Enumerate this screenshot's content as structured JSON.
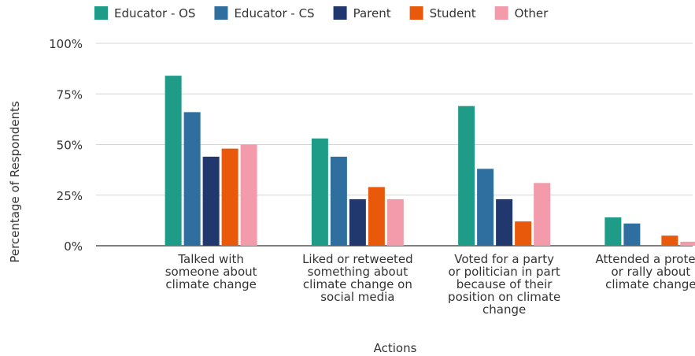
{
  "chart_data": {
    "type": "bar",
    "categories": [
      [
        "Talked with",
        "someone about",
        "climate change"
      ],
      [
        "Liked or retweeted",
        "something about",
        "climate change on",
        "social media"
      ],
      [
        "Voted for a party",
        "or politician in part",
        "because of their",
        "position on climate",
        "change"
      ],
      [
        "Attended a protest",
        "or rally about",
        "climate change"
      ]
    ],
    "series": [
      {
        "name": "Educator - OS",
        "color": "#1f9c87",
        "values": [
          84,
          53,
          69,
          14
        ]
      },
      {
        "name": "Educator - CS",
        "color": "#2f6f9f",
        "values": [
          66,
          44,
          38,
          11
        ]
      },
      {
        "name": "Parent",
        "color": "#20386e",
        "values": [
          44,
          23,
          23,
          0
        ]
      },
      {
        "name": "Student",
        "color": "#e8590c",
        "values": [
          48,
          29,
          12,
          5
        ]
      },
      {
        "name": "Other",
        "color": "#f39bab",
        "values": [
          50,
          23,
          31,
          2
        ]
      }
    ],
    "yticks": [
      "0%",
      "25%",
      "50%",
      "75%",
      "100%"
    ],
    "ylim": [
      0,
      100
    ],
    "xlabel": "Actions",
    "ylabel": "Percentage of Respondents",
    "legend_position": "top",
    "grid": true
  }
}
